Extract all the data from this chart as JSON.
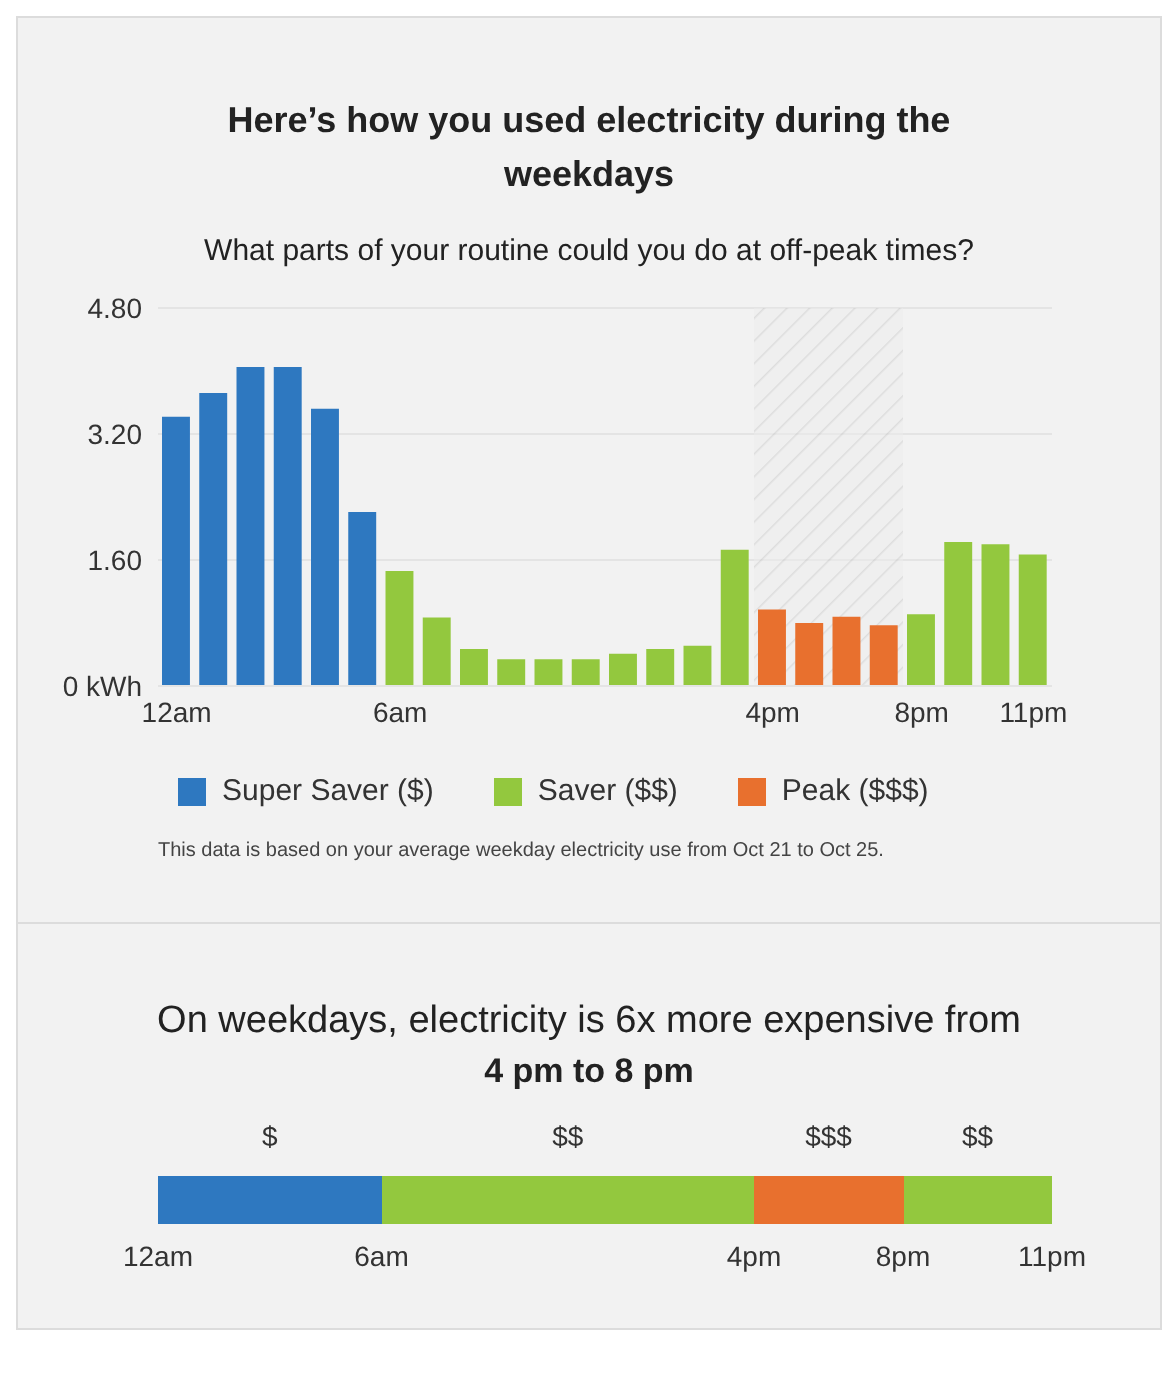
{
  "chart_data": [
    {
      "type": "bar",
      "title": "Here’s how you used electricity during the weekdays",
      "subtitle": "What parts of your routine could you do at off-peak times?",
      "categories": [
        "12am",
        null,
        null,
        null,
        null,
        null,
        "6am",
        null,
        null,
        null,
        null,
        null,
        null,
        null,
        null,
        null,
        "4pm",
        null,
        null,
        null,
        "8pm",
        null,
        null,
        "11pm"
      ],
      "series": [
        {
          "name": "Super Saver ($)",
          "color": "#2e78c0",
          "values": [
            3.42,
            3.72,
            4.05,
            4.05,
            3.52,
            2.21,
            null,
            null,
            null,
            null,
            null,
            null,
            null,
            null,
            null,
            null,
            null,
            null,
            null,
            null,
            null,
            null,
            null,
            null
          ]
        },
        {
          "name": "Saver ($$)",
          "color": "#93c83e",
          "values": [
            null,
            null,
            null,
            null,
            null,
            null,
            1.46,
            0.87,
            0.47,
            0.34,
            0.34,
            0.34,
            0.41,
            0.47,
            0.51,
            1.73,
            null,
            null,
            null,
            null,
            0.91,
            1.83,
            1.8,
            1.67
          ]
        },
        {
          "name": "Peak ($$$)",
          "color": "#e8702e",
          "values": [
            null,
            null,
            null,
            null,
            null,
            null,
            null,
            null,
            null,
            null,
            null,
            null,
            null,
            null,
            null,
            null,
            0.97,
            0.8,
            0.88,
            0.77,
            null,
            null,
            null,
            null
          ]
        }
      ],
      "stacked": true,
      "ylim": [
        0,
        4.8
      ],
      "yticks": [
        {
          "value": 0,
          "label": "0 kWh"
        },
        {
          "value": 1.6,
          "label": "1.60"
        },
        {
          "value": 3.2,
          "label": "3.20"
        },
        {
          "value": 4.8,
          "label": "4.80"
        }
      ],
      "bands": [
        {
          "axis": "x",
          "from": "4pm",
          "to": "8pm",
          "color": "#c8c8c8"
        }
      ],
      "grid": "y",
      "legend": "bottom",
      "annotations": [
        "This data is based on your average weekday electricity use from Oct 21 to Oct 25."
      ]
    },
    {
      "type": "other",
      "title": "On weekdays, electricity is 6x more expensive from",
      "subtitle": "4 pm to 8 pm",
      "annotations": [
        "$",
        "$$",
        "$$$",
        "$$",
        "12am",
        "6am",
        "4pm",
        "8pm",
        "11pm"
      ]
    }
  ]
}
